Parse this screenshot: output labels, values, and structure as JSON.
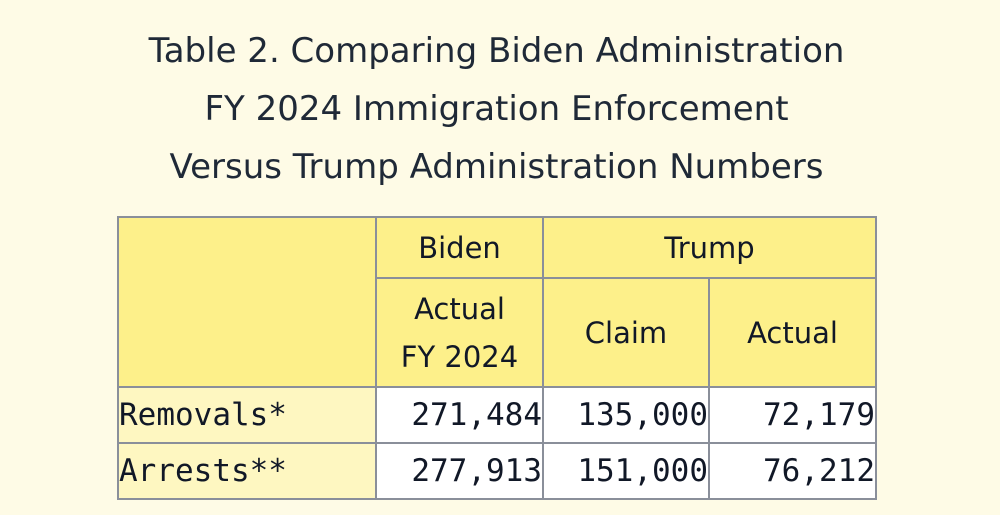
{
  "title": {
    "line1": "Table 2. Comparing Biden Administration",
    "line2": "FY 2024 Immigration Enforcement",
    "line3": "Versus Trump Administration Numbers"
  },
  "table": {
    "group_headers": {
      "biden": "Biden",
      "trump": "Trump"
    },
    "sub_headers": {
      "biden_actual_line1": "Actual",
      "biden_actual_line2": "FY 2024",
      "trump_claim": "Claim",
      "trump_actual": "Actual"
    },
    "rows": [
      {
        "label": "Removals*",
        "biden_actual": "271,484",
        "trump_claim": "135,000",
        "trump_actual": "72,179"
      },
      {
        "label": "Arrests**",
        "biden_actual": "277,913",
        "trump_claim": "151,000",
        "trump_actual": "76,212"
      }
    ]
  }
}
